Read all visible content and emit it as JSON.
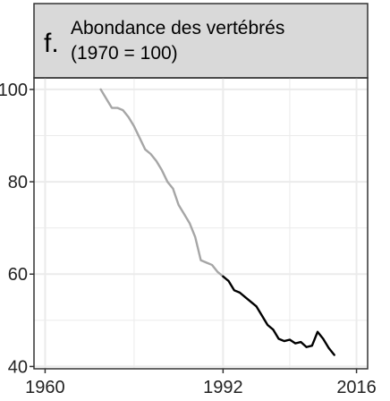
{
  "panel": {
    "letter": "f.",
    "title_line1": "Abondance des vertébrés",
    "title_line2": "(1970 = 100)"
  },
  "colors": {
    "strip": "#d9d9d9",
    "grid": "#ebebeb",
    "series_early": "#a6a6a6",
    "series_late": "#000000",
    "axis": "#333333"
  },
  "chart_data": {
    "type": "line",
    "title": "Abondance des vertébrés (1970 = 100)",
    "xlabel": "",
    "ylabel": "",
    "xlim": [
      1958,
      2018
    ],
    "ylim": [
      39.5,
      102.5
    ],
    "x_ticks": [
      1960,
      1992,
      2016
    ],
    "y_ticks": [
      40,
      60,
      80,
      100
    ],
    "grid": true,
    "series": [
      {
        "color": "#a6a6a6",
        "x": [
          1970,
          1971,
          1972,
          1973,
          1974,
          1975,
          1976,
          1977,
          1978,
          1979,
          1980,
          1981,
          1982,
          1983,
          1984,
          1985,
          1986,
          1987,
          1988,
          1989,
          1990,
          1991,
          1992
        ],
        "y": [
          100,
          98,
          96,
          96,
          95.5,
          94,
          92,
          89.5,
          87,
          86,
          84.5,
          82.5,
          80,
          78.5,
          75,
          73,
          71,
          68,
          63,
          62.5,
          62,
          60.5,
          59.5
        ]
      },
      {
        "color": "#000000",
        "x": [
          1992,
          1993,
          1994,
          1995,
          1996,
          1997,
          1998,
          1999,
          2000,
          2001,
          2002,
          2003,
          2004,
          2005,
          2006,
          2007,
          2008,
          2009,
          2010,
          2011,
          2012
        ],
        "y": [
          59.5,
          58.5,
          56.5,
          56,
          55,
          54,
          53,
          51,
          49,
          48,
          46,
          45.5,
          45.8,
          45,
          45.3,
          44.2,
          44.5,
          47.5,
          46,
          44,
          42.5
        ]
      }
    ]
  }
}
